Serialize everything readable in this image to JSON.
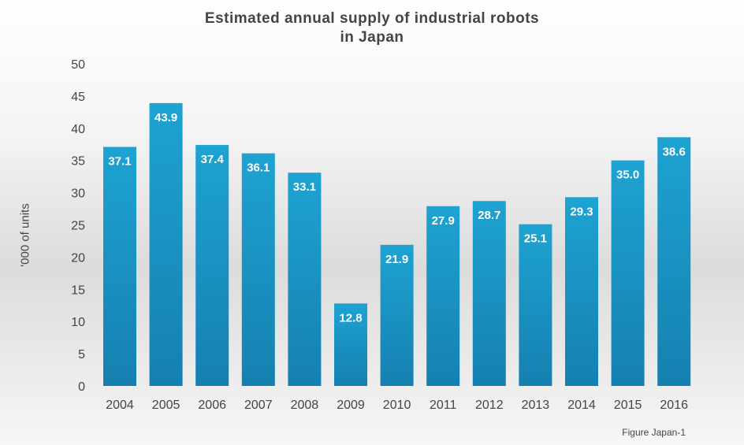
{
  "chart_data": {
    "type": "bar",
    "title_line1": "Estimated annual supply of industrial robots",
    "title_line2": "in Japan",
    "ylabel": "'000 of units",
    "xlabel": "",
    "ylim": [
      0,
      50
    ],
    "yticks": [
      0,
      5,
      10,
      15,
      20,
      25,
      30,
      35,
      40,
      45,
      50
    ],
    "categories": [
      "2004",
      "2005",
      "2006",
      "2007",
      "2008",
      "2009",
      "2010",
      "2011",
      "2012",
      "2013",
      "2014",
      "2015",
      "2016"
    ],
    "values": [
      37.1,
      43.9,
      37.4,
      36.1,
      33.1,
      12.8,
      21.9,
      27.9,
      28.7,
      25.1,
      29.3,
      35.0,
      38.6
    ],
    "data_labels": [
      "37.1",
      "43.9",
      "37.4",
      "36.1",
      "33.1",
      "12.8",
      "21.9",
      "27.9",
      "28.7",
      "25.1",
      "29.3",
      "35.0",
      "38.6"
    ],
    "grid": false,
    "bar_color": "#1a9ccc",
    "footer": "Figure Japan-1"
  }
}
